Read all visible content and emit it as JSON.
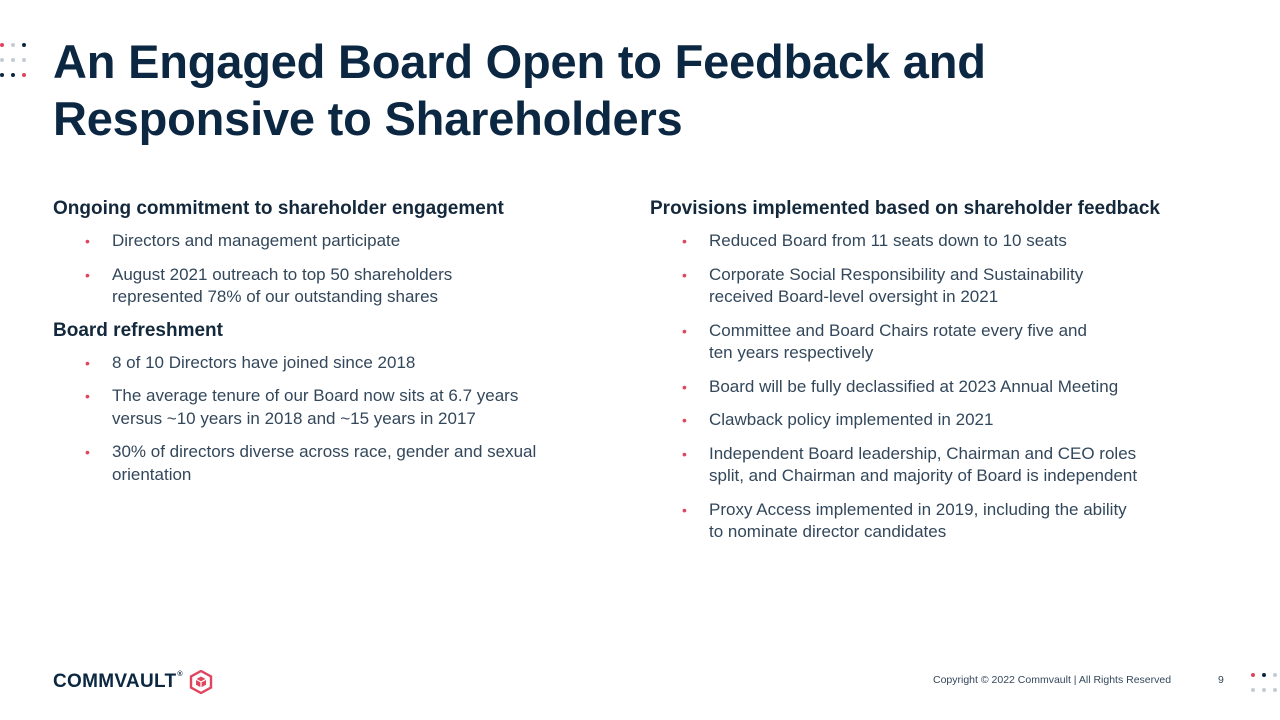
{
  "slide": {
    "title_line1": "An Engaged Board Open to Feedback and",
    "title_line2": "Responsive to Shareholders"
  },
  "left": {
    "sections": [
      {
        "heading": "Ongoing commitment to shareholder engagement",
        "bullets": [
          "Directors and management participate",
          "August 2021 outreach to top 50 shareholders\nrepresented 78% of our outstanding shares"
        ]
      },
      {
        "heading": "Board refreshment",
        "bullets": [
          "8 of 10 Directors have joined since 2018",
          "The average tenure of our Board now sits at 6.7 years\nversus ~10 years in 2018 and ~15 years in 2017",
          "30% of directors diverse across race, gender and sexual\norientation"
        ]
      }
    ]
  },
  "right": {
    "heading": "Provisions implemented based on shareholder feedback",
    "bullets": [
      "Reduced Board from 11 seats down to 10 seats",
      "Corporate Social Responsibility and Sustainability\nreceived  Board-level oversight in 2021",
      "Committee and Board Chairs rotate every five and\nten years respectively",
      "Board will be fully declassified at 2023 Annual Meeting",
      "Clawback policy implemented in 2021",
      "Independent Board leadership, Chairman and CEO roles\nsplit, and Chairman and majority of Board is independent",
      "Proxy Access implemented in 2019, including the ability\nto nominate director candidates"
    ]
  },
  "footer": {
    "logo_text": "COMMVAULT",
    "logo_tm": "®",
    "copyright": "Copyright © 2022 Commvault  |  All Rights Reserved",
    "page_number": "9"
  },
  "colors": {
    "accent_pink": "#e0455f",
    "navy": "#0b2741",
    "dot_gray": "#c6ccd4"
  },
  "icons": {
    "bullet": "•",
    "logo": "commvault-cube-logo-icon",
    "decor": "dot-grid-decoration-icon"
  }
}
